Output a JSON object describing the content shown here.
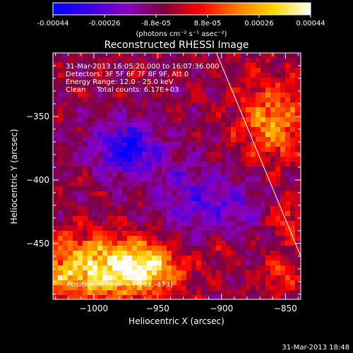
{
  "colorbar": {
    "ticks": [
      "-0.00044",
      "-0.00026",
      "-8.8e-05",
      "8.8e-05",
      "0.00026",
      "0.00044"
    ],
    "unit_label": "(photons cm⁻² s⁻¹ asec⁻²)",
    "stops": [
      "#0000ff",
      "#3a00e6",
      "#8a00c0",
      "#7a0040",
      "#ff0000",
      "#ff7a00",
      "#ffd700",
      "#ffffff"
    ]
  },
  "chart_data": {
    "type": "heatmap",
    "title": "Reconstructed RHESSI Image",
    "xlabel": "Heliocentric X (arcsec)",
    "ylabel": "Heliocentric Y (arcsec)",
    "xlim": [
      -1032,
      -838
    ],
    "ylim": [
      -494,
      -300
    ],
    "x_ticks": [
      -1000,
      -950,
      -900,
      -850
    ],
    "x_tick_labels": [
      "−1000",
      "−950",
      "−900",
      "−850"
    ],
    "y_ticks": [
      -450,
      -400,
      -350
    ],
    "y_tick_labels": [
      "−450",
      "−400",
      "−350"
    ],
    "value_range": [
      -0.00044,
      0.00044
    ],
    "grid": false,
    "limb_line": [
      [
        -904,
        -300
      ],
      [
        -838,
        -460
      ]
    ],
    "info_lines": [
      "31-Mar-2013 16:05:20.000 to 16:07:36.000",
      "Detectors: 3F 5F 6F 7F 8F 9F, Att 0",
      "Energy Range: 12.0 - 25.0 keV",
      "Clean     Total counts: 6.17E+03"
    ],
    "peak_text": "Position of Peak = [-951,-473]",
    "sources": [
      {
        "x": -1000,
        "y": -470,
        "sx": 35,
        "sy": 18,
        "value": 0.0004
      },
      {
        "x": -960,
        "y": -468,
        "sx": 18,
        "sy": 12,
        "value": 0.0003
      },
      {
        "x": -860,
        "y": -355,
        "sx": 18,
        "sy": 22,
        "value": 0.00028
      },
      {
        "x": -850,
        "y": -430,
        "sx": 10,
        "sy": 12,
        "value": 0.0002
      },
      {
        "x": -855,
        "y": -475,
        "sx": 10,
        "sy": 10,
        "value": 0.00016
      },
      {
        "x": -900,
        "y": -455,
        "sx": 6,
        "sy": 6,
        "value": 0.00012
      },
      {
        "x": -975,
        "y": -375,
        "sx": 18,
        "sy": 15,
        "value": -0.00032
      },
      {
        "x": -900,
        "y": -420,
        "sx": 30,
        "sy": 20,
        "value": -0.00015
      },
      {
        "x": -930,
        "y": -405,
        "sx": 20,
        "sy": 20,
        "value": -8e-05
      }
    ]
  },
  "timestamp": "31-Mar-2013 18:48"
}
